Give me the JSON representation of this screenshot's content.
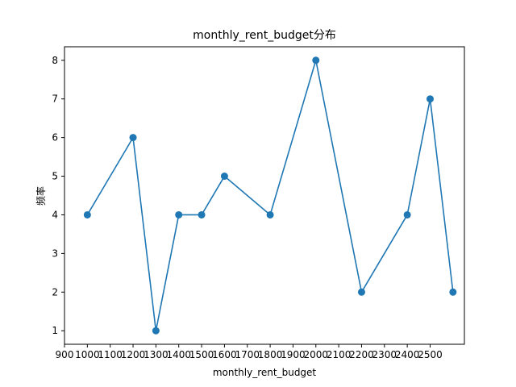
{
  "chart_data": {
    "type": "line",
    "title": "monthly_rent_budget分布",
    "xlabel": "monthly_rent_budget",
    "ylabel": "频率",
    "xlim": [
      900,
      2650
    ],
    "ylim": [
      0.65,
      8.35
    ],
    "x_ticks": [
      900,
      1000,
      1100,
      1200,
      1300,
      1400,
      1500,
      1600,
      1700,
      1800,
      1900,
      2000,
      2100,
      2200,
      2300,
      2400,
      2500
    ],
    "y_ticks": [
      1,
      2,
      3,
      4,
      5,
      6,
      7,
      8
    ],
    "grid": false,
    "legend": "none",
    "series": [
      {
        "color": "#1f77b4",
        "marker": "circle",
        "x": [
          1000,
          1200,
          1300,
          1400,
          1500,
          1600,
          1800,
          2000,
          2200,
          2400,
          2500,
          2600
        ],
        "y": [
          4,
          6,
          1,
          4,
          4,
          5,
          4,
          8,
          2,
          4,
          7,
          2
        ]
      }
    ]
  }
}
